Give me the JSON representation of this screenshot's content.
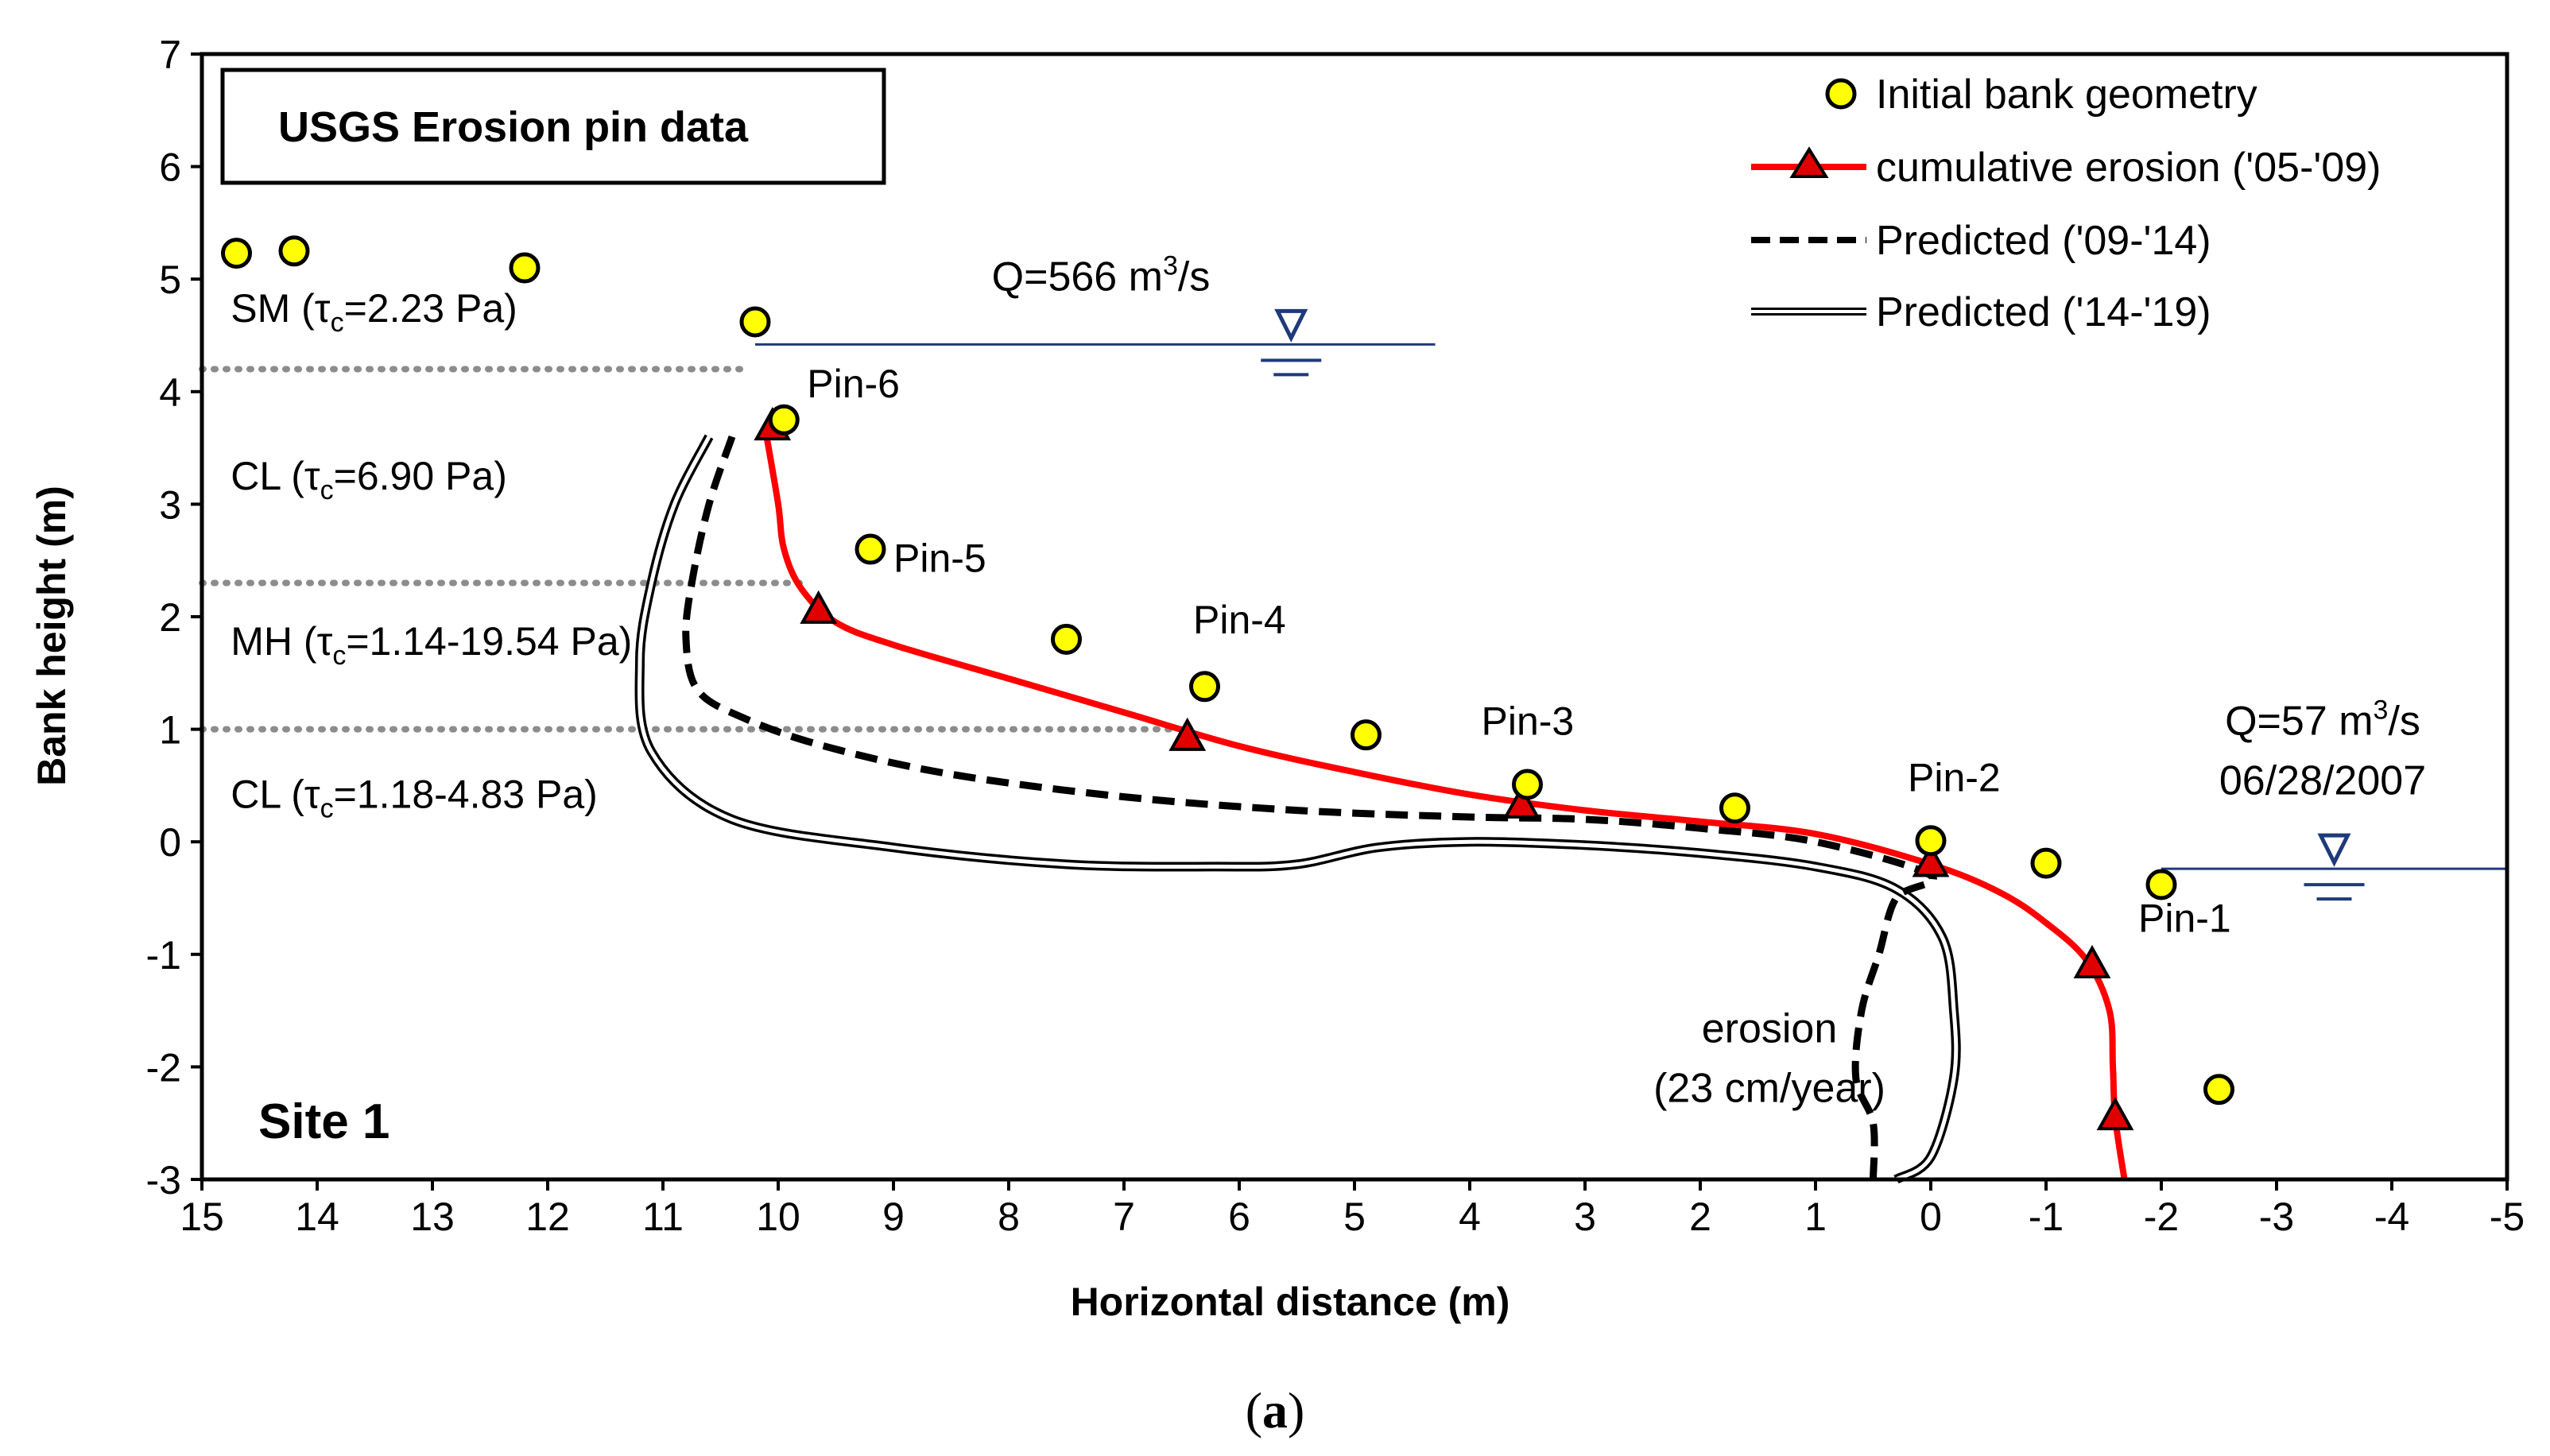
{
  "chart_data": {
    "type": "scatter",
    "title": "USGS Erosion pin data",
    "site_label": "Site 1",
    "caption_open": "(",
    "caption_letter": "a",
    "caption_close": ")",
    "xlabel": "Horizontal distance (m)",
    "ylabel": "Bank height (m)",
    "xlim": [
      15,
      -5
    ],
    "ylim": [
      -3,
      7
    ],
    "x_ticks": [
      15,
      14,
      13,
      12,
      11,
      10,
      9,
      8,
      7,
      6,
      5,
      4,
      3,
      2,
      1,
      0,
      -1,
      -2,
      -3,
      -4,
      -5
    ],
    "y_ticks": [
      -3,
      -2,
      -1,
      0,
      1,
      2,
      3,
      4,
      5,
      6,
      7
    ],
    "legend_position": "top-right",
    "series": [
      {
        "name": "Initial bank geometry",
        "style": "yellow-circle",
        "points": [
          [
            14.7,
            5.23
          ],
          [
            14.2,
            5.25
          ],
          [
            12.2,
            5.1
          ],
          [
            10.2,
            4.62
          ],
          [
            9.95,
            3.75
          ],
          [
            9.2,
            2.6
          ],
          [
            7.5,
            1.8
          ],
          [
            6.3,
            1.38
          ],
          [
            4.9,
            0.95
          ],
          [
            3.5,
            0.51
          ],
          [
            1.7,
            0.3
          ],
          [
            0.0,
            0.01
          ],
          [
            -1.0,
            -0.19
          ],
          [
            -2.0,
            -0.38
          ],
          [
            -2.5,
            -2.2
          ]
        ]
      },
      {
        "name": "cumulative erosion ('05-'09)",
        "style": "red-line-triangle",
        "markers": [
          [
            10.05,
            3.68
          ],
          [
            9.65,
            2.05
          ],
          [
            6.45,
            0.92
          ],
          [
            3.55,
            0.32
          ],
          [
            0.0,
            -0.2
          ],
          [
            -1.4,
            -1.1
          ],
          [
            -1.6,
            -2.45
          ]
        ],
        "curve": [
          [
            10.1,
            3.6
          ],
          [
            10.0,
            3.0
          ],
          [
            9.95,
            2.6
          ],
          [
            9.8,
            2.25
          ],
          [
            9.5,
            1.95
          ],
          [
            9.0,
            1.75
          ],
          [
            8.0,
            1.45
          ],
          [
            7.0,
            1.15
          ],
          [
            6.0,
            0.85
          ],
          [
            5.0,
            0.62
          ],
          [
            4.0,
            0.42
          ],
          [
            3.0,
            0.28
          ],
          [
            2.0,
            0.18
          ],
          [
            1.0,
            0.07
          ],
          [
            0.0,
            -0.2
          ],
          [
            -0.6,
            -0.45
          ],
          [
            -1.0,
            -0.72
          ],
          [
            -1.35,
            -1.05
          ],
          [
            -1.55,
            -1.5
          ],
          [
            -1.58,
            -2.0
          ],
          [
            -1.6,
            -2.45
          ],
          [
            -1.68,
            -3.0
          ]
        ]
      },
      {
        "name": "Predicted ('09-'14)",
        "style": "black-dashed",
        "curve": [
          [
            10.4,
            3.6
          ],
          [
            10.6,
            3.0
          ],
          [
            10.75,
            2.3
          ],
          [
            10.8,
            1.8
          ],
          [
            10.7,
            1.35
          ],
          [
            10.3,
            1.1
          ],
          [
            9.6,
            0.85
          ],
          [
            8.5,
            0.6
          ],
          [
            7.0,
            0.4
          ],
          [
            5.5,
            0.28
          ],
          [
            4.0,
            0.22
          ],
          [
            3.0,
            0.2
          ],
          [
            2.0,
            0.12
          ],
          [
            1.0,
            0.0
          ],
          [
            0.0,
            -0.3
          ],
          [
            0.3,
            -0.5
          ],
          [
            0.45,
            -1.0
          ],
          [
            0.6,
            -1.5
          ],
          [
            0.65,
            -2.1
          ],
          [
            0.5,
            -2.5
          ],
          [
            0.5,
            -3.0
          ]
        ]
      },
      {
        "name": "Predicted ('14-'19)",
        "style": "double-line",
        "curve": [
          [
            10.6,
            3.6
          ],
          [
            10.9,
            3.0
          ],
          [
            11.1,
            2.3
          ],
          [
            11.2,
            1.6
          ],
          [
            11.1,
            0.8
          ],
          [
            10.4,
            0.2
          ],
          [
            9.0,
            -0.05
          ],
          [
            7.5,
            -0.2
          ],
          [
            6.2,
            -0.22
          ],
          [
            5.5,
            -0.2
          ],
          [
            4.8,
            -0.05
          ],
          [
            4.0,
            0.0
          ],
          [
            3.0,
            -0.03
          ],
          [
            2.0,
            -0.1
          ],
          [
            1.0,
            -0.22
          ],
          [
            0.3,
            -0.42
          ],
          [
            -0.1,
            -0.85
          ],
          [
            -0.2,
            -1.5
          ],
          [
            -0.2,
            -2.1
          ],
          [
            0.0,
            -2.8
          ],
          [
            0.3,
            -3.0
          ]
        ]
      }
    ],
    "layer_boundaries": [
      {
        "y": 4.2,
        "x_from": 15,
        "x_to": 10.3
      },
      {
        "y": 2.3,
        "x_from": 15,
        "x_to": 9.8
      },
      {
        "y": 1.0,
        "x_from": 15,
        "x_to": 6.6
      }
    ],
    "soil_layers": [
      {
        "name": "SM",
        "param": "2.23 Pa",
        "x": 14.75,
        "y": 4.62
      },
      {
        "name": "CL",
        "param": "6.90 Pa",
        "x": 14.75,
        "y": 3.13
      },
      {
        "name": "MH",
        "param": "1.14-19.54 Pa",
        "x": 14.75,
        "y": 1.66
      },
      {
        "name": "CL",
        "param": "1.18-4.83 Pa",
        "x": 14.75,
        "y": 0.3
      }
    ],
    "tau_symbol": "τ",
    "tau_subscript": "c",
    "pin_labels": [
      {
        "text": "Pin-6",
        "x": 9.75,
        "y": 3.95
      },
      {
        "text": "Pin-5",
        "x": 9.0,
        "y": 2.4
      },
      {
        "text": "Pin-4",
        "x": 6.4,
        "y": 1.85
      },
      {
        "text": "Pin-3",
        "x": 3.9,
        "y": 0.95
      },
      {
        "text": "Pin-2",
        "x": 0.2,
        "y": 0.45
      },
      {
        "text": "Pin-1",
        "x": -1.8,
        "y": -0.8
      }
    ],
    "water_levels": [
      {
        "label_prefix": "Q=566 m",
        "label_sup": "3",
        "label_suffix": "/s",
        "date": "",
        "y": 4.42,
        "x_from": 10.2,
        "x_to": 4.3,
        "sym_x": 5.55,
        "label_x": 7.2,
        "label_y": 4.9
      },
      {
        "label_prefix": "Q=57 m",
        "label_sup": "3",
        "label_suffix": "/s",
        "date": "06/28/2007",
        "y": -0.24,
        "x_from": -2.0,
        "x_to": -5.0,
        "sym_x": -3.5,
        "label_x": -3.4,
        "label_y": 0.95
      }
    ],
    "erosion_note_line1": "erosion",
    "erosion_note_line2": "(23 cm/year)",
    "erosion_note_x": 1.4,
    "erosion_note_y": -2.03
  }
}
